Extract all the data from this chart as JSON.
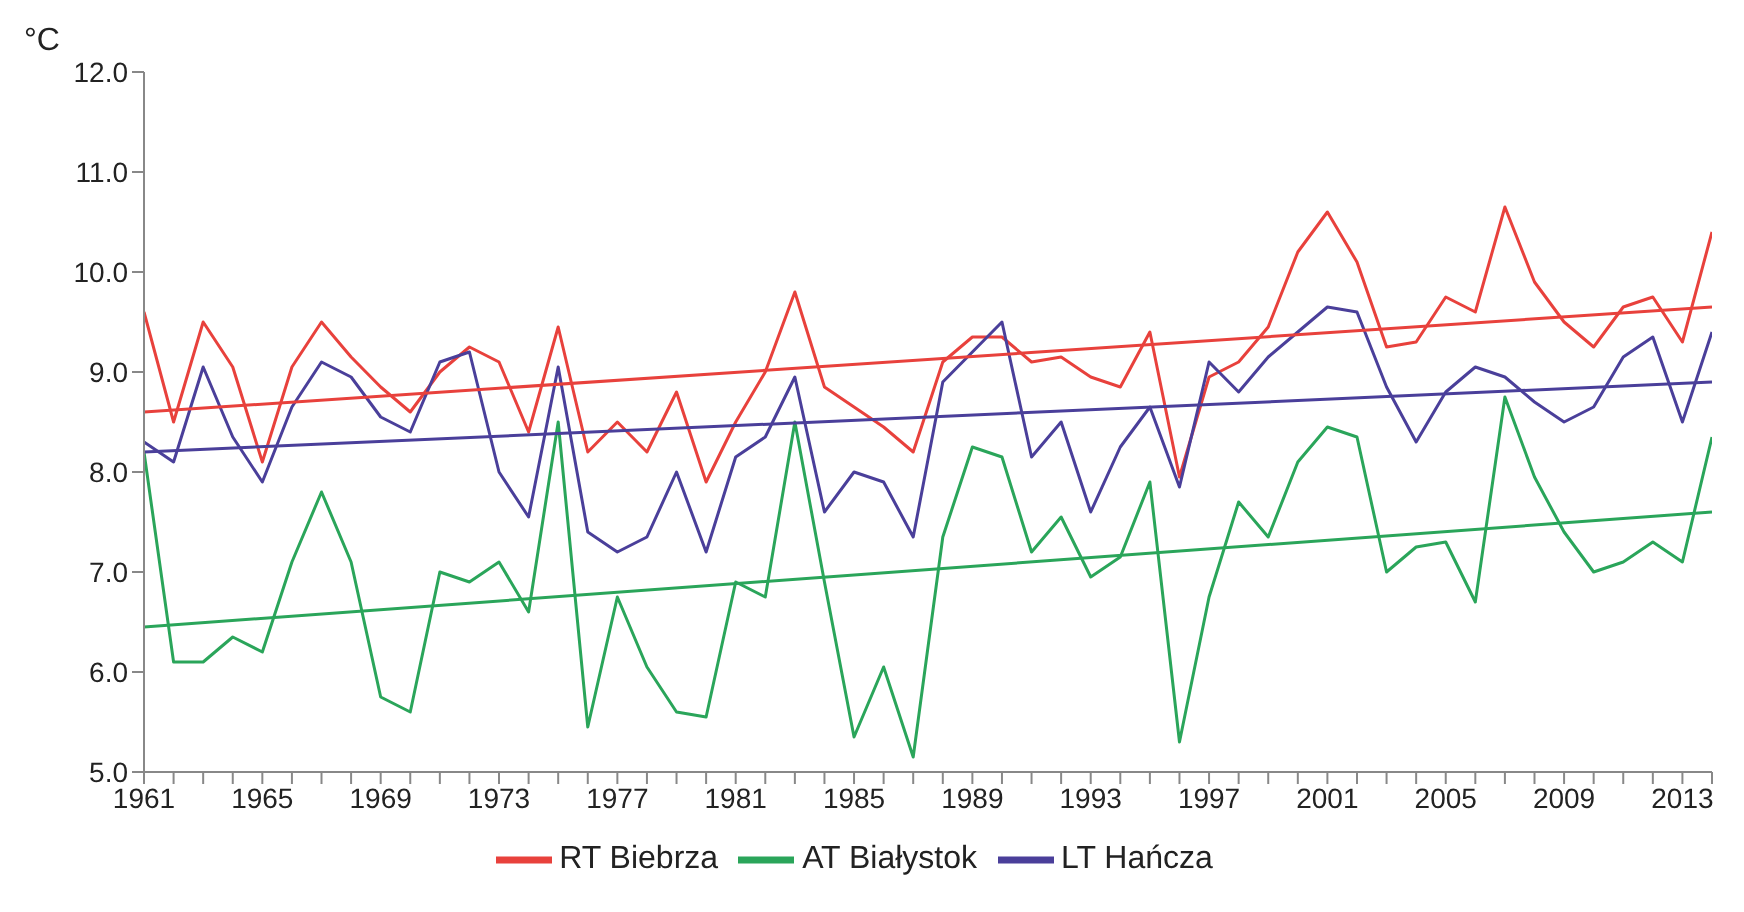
{
  "chart_data": {
    "type": "line",
    "ylabel": "°C",
    "x": [
      1961,
      1962,
      1963,
      1964,
      1965,
      1966,
      1967,
      1968,
      1969,
      1970,
      1971,
      1972,
      1973,
      1974,
      1975,
      1976,
      1977,
      1978,
      1979,
      1980,
      1981,
      1982,
      1983,
      1984,
      1985,
      1986,
      1987,
      1988,
      1989,
      1990,
      1991,
      1992,
      1993,
      1994,
      1995,
      1996,
      1997,
      1998,
      1999,
      2000,
      2001,
      2002,
      2003,
      2004,
      2005,
      2006,
      2007,
      2008,
      2009,
      2010,
      2011,
      2012,
      2013,
      2014
    ],
    "series": [
      {
        "name": "RT Biebrza",
        "color": "#e8413c",
        "values": [
          9.6,
          8.5,
          9.5,
          9.05,
          8.1,
          9.05,
          9.5,
          9.15,
          8.85,
          8.6,
          9.0,
          9.25,
          9.1,
          8.4,
          9.45,
          8.2,
          8.5,
          8.2,
          8.8,
          7.9,
          8.5,
          9.0,
          9.8,
          8.85,
          8.65,
          8.45,
          8.2,
          9.1,
          9.35,
          9.35,
          9.1,
          9.15,
          8.95,
          8.85,
          9.4,
          7.95,
          8.95,
          9.1,
          9.45,
          10.2,
          10.6,
          10.1,
          9.25,
          9.3,
          9.75,
          9.6,
          10.65,
          9.9,
          9.5,
          9.25,
          9.65,
          9.75,
          9.3,
          10.4
        ]
      },
      {
        "name": "AT Białystok",
        "color": "#2aa55a",
        "values": [
          8.2,
          6.1,
          6.1,
          6.35,
          6.2,
          7.1,
          7.8,
          7.1,
          5.75,
          5.6,
          7.0,
          6.9,
          7.1,
          6.6,
          8.5,
          5.45,
          6.75,
          6.05,
          5.6,
          5.55,
          6.9,
          6.75,
          8.5,
          6.9,
          5.35,
          6.05,
          5.15,
          7.35,
          8.25,
          8.15,
          7.2,
          7.55,
          6.95,
          7.15,
          7.9,
          5.3,
          6.75,
          7.7,
          7.35,
          8.1,
          8.45,
          8.35,
          7.0,
          7.25,
          7.3,
          6.7,
          8.75,
          7.95,
          7.4,
          7.0,
          7.1,
          7.3,
          7.1,
          8.35
        ]
      },
      {
        "name": "LT Hańcza",
        "color": "#4a3f9a",
        "values": [
          8.3,
          8.1,
          9.05,
          8.35,
          7.9,
          8.65,
          9.1,
          8.95,
          8.55,
          8.4,
          9.1,
          9.2,
          8.0,
          7.55,
          9.05,
          7.4,
          7.2,
          7.35,
          8.0,
          7.2,
          8.15,
          8.35,
          8.95,
          7.6,
          8.0,
          7.9,
          7.35,
          8.9,
          9.2,
          9.5,
          8.15,
          8.5,
          7.6,
          8.25,
          8.65,
          7.85,
          9.1,
          8.8,
          9.15,
          9.4,
          9.65,
          9.6,
          8.85,
          8.3,
          8.8,
          9.05,
          8.95,
          8.7,
          8.5,
          8.65,
          9.15,
          9.35,
          8.5,
          9.4
        ]
      },
      {
        "type": "line",
        "color": "#e8413c",
        "values": [
          8.6,
          null,
          null,
          null,
          null,
          null,
          null,
          null,
          null,
          null,
          null,
          null,
          null,
          null,
          null,
          null,
          null,
          null,
          null,
          null,
          null,
          null,
          null,
          null,
          null,
          null,
          null,
          null,
          null,
          null,
          null,
          null,
          null,
          null,
          null,
          null,
          null,
          null,
          null,
          null,
          null,
          null,
          null,
          null,
          null,
          null,
          null,
          null,
          null,
          null,
          null,
          null,
          null,
          9.65
        ]
      },
      {
        "type": "line",
        "color": "#2aa55a",
        "values": [
          6.45,
          null,
          null,
          null,
          null,
          null,
          null,
          null,
          null,
          null,
          null,
          null,
          null,
          null,
          null,
          null,
          null,
          null,
          null,
          null,
          null,
          null,
          null,
          null,
          null,
          null,
          null,
          null,
          null,
          null,
          null,
          null,
          null,
          null,
          null,
          null,
          null,
          null,
          null,
          null,
          null,
          null,
          null,
          null,
          null,
          null,
          null,
          null,
          null,
          null,
          null,
          null,
          null,
          7.6
        ]
      },
      {
        "type": "line",
        "color": "#4a3f9a",
        "values": [
          8.2,
          null,
          null,
          null,
          null,
          null,
          null,
          null,
          null,
          null,
          null,
          null,
          null,
          null,
          null,
          null,
          null,
          null,
          null,
          null,
          null,
          null,
          null,
          null,
          null,
          null,
          null,
          null,
          null,
          null,
          null,
          null,
          null,
          null,
          null,
          null,
          null,
          null,
          null,
          null,
          null,
          null,
          null,
          null,
          null,
          null,
          null,
          null,
          null,
          null,
          null,
          null,
          null,
          8.9
        ]
      }
    ],
    "xlim": [
      1961,
      2014
    ],
    "xticks": [
      1961,
      {
        "value": 1962,
        "label": null
      },
      {
        "value": 1963,
        "label": null
      },
      {
        "value": 1964,
        "label": null
      },
      1965,
      {
        "value": 1966,
        "label": null
      },
      {
        "value": 1967,
        "label": null
      },
      {
        "value": 1968,
        "label": null
      },
      1969,
      {
        "value": 1970,
        "label": null
      },
      {
        "value": 1971,
        "label": null
      },
      {
        "value": 1972,
        "label": null
      },
      1973,
      {
        "value": 1974,
        "label": null
      },
      {
        "value": 1975,
        "label": null
      },
      {
        "value": 1976,
        "label": null
      },
      1977,
      {
        "value": 1978,
        "label": null
      },
      {
        "value": 1979,
        "label": null
      },
      {
        "value": 1980,
        "label": null
      },
      1981,
      {
        "value": 1982,
        "label": null
      },
      {
        "value": 1983,
        "label": null
      },
      {
        "value": 1984,
        "label": null
      },
      1985,
      {
        "value": 1986,
        "label": null
      },
      {
        "value": 1987,
        "label": null
      },
      {
        "value": 1988,
        "label": null
      },
      1989,
      {
        "value": 1990,
        "label": null
      },
      {
        "value": 1991,
        "label": null
      },
      {
        "value": 1992,
        "label": null
      },
      1993,
      {
        "value": 1994,
        "label": null
      },
      {
        "value": 1995,
        "label": null
      },
      {
        "value": 1996,
        "label": null
      },
      1997,
      {
        "value": 1998,
        "label": null
      },
      {
        "value": 1999,
        "label": null
      },
      {
        "value": 2000,
        "label": null
      },
      2001,
      {
        "value": 2002,
        "label": null
      },
      {
        "value": 2003,
        "label": null
      },
      {
        "value": 2004,
        "label": null
      },
      2005,
      {
        "value": 2006,
        "label": null
      },
      {
        "value": 2007,
        "label": null
      },
      {
        "value": 2008,
        "label": null
      },
      2009,
      {
        "value": 2010,
        "label": null
      },
      {
        "value": 2011,
        "label": null
      },
      {
        "value": 2012,
        "label": null
      },
      2013,
      {
        "value": 2014,
        "label": null
      }
    ],
    "ylim": [
      5,
      12
    ],
    "yticks": [
      {
        "value": 5,
        "label": "5.0"
      },
      {
        "value": 6,
        "label": "6.0"
      },
      {
        "value": 7,
        "label": "7.0"
      },
      {
        "value": 8,
        "label": "8.0"
      },
      {
        "value": 9,
        "label": "9.0"
      },
      {
        "value": 10,
        "label": "10.0"
      },
      {
        "value": 11,
        "label": "11.0"
      },
      {
        "value": 12,
        "label": "12.0"
      }
    ],
    "grid": false,
    "legend": "bottom",
    "marker": "none",
    "line_style": "solid"
  }
}
